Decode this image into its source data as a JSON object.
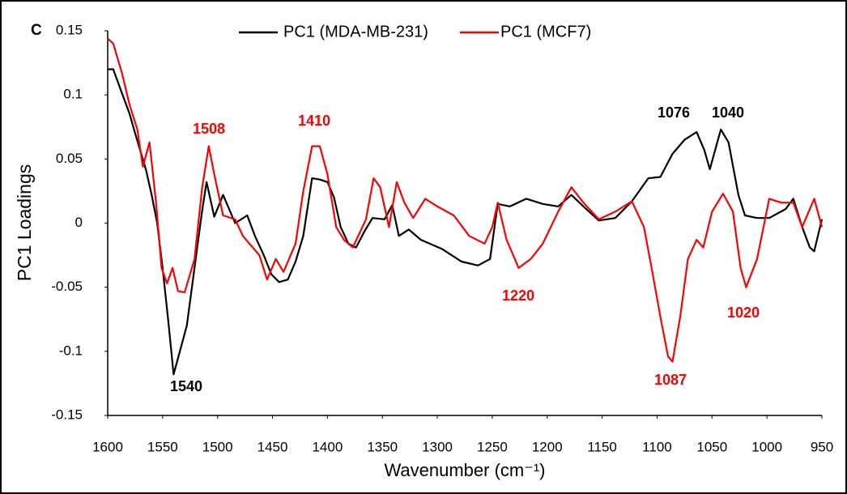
{
  "chart_data": {
    "type": "line",
    "panel_label": "C",
    "x_label": "Wavenumber (cm⁻¹)",
    "y_label": "PC1 Loadings",
    "xlim": [
      1600,
      950
    ],
    "xticks": [
      1600,
      1550,
      1500,
      1450,
      1400,
      1350,
      1300,
      1250,
      1200,
      1150,
      1100,
      1050,
      1000,
      950
    ],
    "ylim": [
      -0.15,
      0.15
    ],
    "yticks": [
      0.15,
      0.1,
      0.05,
      0,
      -0.05,
      -0.1,
      -0.15
    ],
    "grid": false,
    "legend": "top",
    "series": [
      {
        "name": "PC1 (MDA-MB-231)",
        "color": "#000000",
        "x": [
          1600,
          1595,
          1580,
          1575,
          1565,
          1560,
          1555,
          1550,
          1545,
          1540,
          1528,
          1521,
          1514,
          1510,
          1503,
          1495,
          1484,
          1473,
          1466,
          1458,
          1451,
          1444,
          1436,
          1429,
          1422,
          1414,
          1407,
          1400,
          1394,
          1388,
          1381,
          1374,
          1366,
          1359,
          1348,
          1341,
          1335,
          1326,
          1315,
          1296,
          1278,
          1263,
          1252,
          1245,
          1234,
          1219,
          1204,
          1190,
          1178,
          1167,
          1153,
          1138,
          1123,
          1108,
          1097,
          1086,
          1075,
          1064,
          1057,
          1052,
          1042,
          1035,
          1026,
          1020,
          1009,
          998,
          983,
          976,
          968,
          961,
          957,
          950
        ],
        "values": [
          0.12,
          0.12,
          0.085,
          0.07,
          0.041,
          0.022,
          0.0,
          -0.035,
          -0.075,
          -0.118,
          -0.08,
          -0.035,
          0.01,
          0.032,
          0.005,
          0.022,
          0.0,
          0.006,
          -0.01,
          -0.025,
          -0.04,
          -0.046,
          -0.044,
          -0.03,
          -0.01,
          0.035,
          0.034,
          0.032,
          0.02,
          -0.003,
          -0.016,
          -0.019,
          -0.006,
          0.004,
          0.003,
          0.014,
          -0.01,
          -0.005,
          -0.013,
          -0.02,
          -0.03,
          -0.033,
          -0.028,
          0.015,
          0.013,
          0.019,
          0.015,
          0.013,
          0.022,
          0.013,
          0.002,
          0.004,
          0.017,
          0.035,
          0.036,
          0.054,
          0.065,
          0.071,
          0.057,
          0.042,
          0.073,
          0.063,
          0.022,
          0.006,
          0.004,
          0.004,
          0.011,
          0.019,
          -0.003,
          -0.019,
          -0.022,
          0.003
        ]
      },
      {
        "name": "PC1 (MCF7)",
        "color": "#ff0000",
        "x": [
          1600,
          1595,
          1587,
          1580,
          1573,
          1568,
          1562,
          1556,
          1551,
          1546,
          1541,
          1536,
          1530,
          1521,
          1514,
          1508,
          1503,
          1495,
          1484,
          1477,
          1462,
          1455,
          1447,
          1440,
          1429,
          1422,
          1414,
          1407,
          1400,
          1392,
          1385,
          1377,
          1372,
          1365,
          1358,
          1352,
          1344,
          1337,
          1330,
          1322,
          1311,
          1300,
          1285,
          1271,
          1257,
          1250,
          1245,
          1237,
          1226,
          1215,
          1204,
          1190,
          1178,
          1167,
          1153,
          1138,
          1123,
          1112,
          1105,
          1097,
          1090,
          1086,
          1079,
          1072,
          1064,
          1058,
          1050,
          1040,
          1031,
          1024,
          1019,
          1009,
          998,
          987,
          976,
          968,
          957,
          950
        ],
        "values": [
          0.144,
          0.14,
          0.117,
          0.092,
          0.073,
          0.044,
          0.063,
          0.016,
          -0.035,
          -0.047,
          -0.035,
          -0.053,
          -0.054,
          -0.028,
          0.028,
          0.06,
          0.038,
          0.006,
          0.003,
          -0.01,
          -0.025,
          -0.044,
          -0.028,
          -0.038,
          -0.016,
          0.025,
          0.06,
          0.06,
          0.038,
          -0.003,
          -0.013,
          -0.019,
          -0.01,
          0.003,
          0.035,
          0.028,
          -0.003,
          0.032,
          0.016,
          0.004,
          0.019,
          0.013,
          0.006,
          -0.01,
          -0.016,
          -0.003,
          0.016,
          -0.013,
          -0.035,
          -0.028,
          -0.016,
          0.009,
          0.028,
          0.016,
          0.003,
          0.009,
          0.017,
          -0.003,
          -0.035,
          -0.073,
          -0.104,
          -0.108,
          -0.073,
          -0.028,
          -0.013,
          -0.019,
          0.009,
          0.023,
          0.009,
          -0.035,
          -0.05,
          -0.028,
          0.019,
          0.016,
          0.016,
          -0.003,
          0.019,
          -0.003
        ]
      }
    ],
    "annotations": [
      {
        "text": "1540",
        "color": "#000000"
      },
      {
        "text": "1508",
        "color": "#ff0000"
      },
      {
        "text": "1410",
        "color": "#ff0000"
      },
      {
        "text": "1220",
        "color": "#ff0000"
      },
      {
        "text": "1087",
        "color": "#ff0000"
      },
      {
        "text": "1020",
        "color": "#ff0000"
      },
      {
        "text": "1076",
        "color": "#000000"
      },
      {
        "text": "1040",
        "color": "#000000"
      }
    ]
  }
}
